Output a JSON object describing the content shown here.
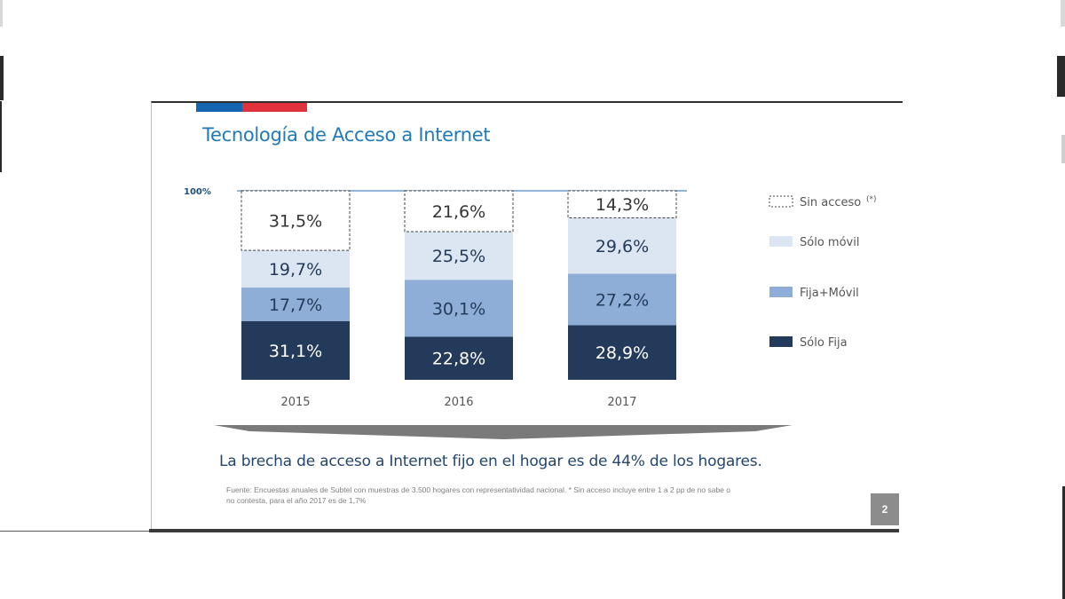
{
  "slide": {
    "title": "Tecnología de Acceso a Internet",
    "conclusion": "La brecha de acceso a Internet fijo en el hogar es de 44% de los hogares.",
    "footnote_line1": "Fuente: Encuestas anuales de Subtel con muestras de 3.500 hogares con representatividad nacional. * Sin acceso incluye entre 1 a 2 pp de no sabe o",
    "footnote_line2": "no contesta, para el año 2017 es de 1,7%",
    "page_number": "2"
  },
  "colors": {
    "title": "#1f7ab8",
    "flag_blue": "#1565b0",
    "flag_red": "#e0313c",
    "solo_fija": "#243a5a",
    "fija_movil": "#8faed7",
    "solo_movil": "#dce6f2",
    "sin_acceso_border": "#444444",
    "value_text_dark": "#243a5a",
    "value_text_light": "#ffffff"
  },
  "chart_data": {
    "type": "bar",
    "stacked": true,
    "categories": [
      "2015",
      "2016",
      "2017"
    ],
    "ylim": [
      0,
      100
    ],
    "top_label": "100%",
    "series": [
      {
        "name": "Sólo Fija",
        "values": [
          31.1,
          22.8,
          28.9
        ],
        "labels": [
          "31,1%",
          "22,8%",
          "28,9%"
        ],
        "color": "#243a5a",
        "label_color": "#ffffff"
      },
      {
        "name": "Fija+Móvil",
        "values": [
          17.7,
          30.1,
          27.2
        ],
        "labels": [
          "17,7%",
          "30,1%",
          "27,2%"
        ],
        "color": "#8faed7",
        "label_color": "#243a5a"
      },
      {
        "name": "Sólo móvil",
        "values": [
          19.7,
          25.5,
          29.6
        ],
        "labels": [
          "19,7%",
          "25,5%",
          "29,6%"
        ],
        "color": "#dce6f2",
        "label_color": "#243a5a"
      },
      {
        "name": "Sin acceso",
        "name_suffix": "(*)",
        "values": [
          31.5,
          21.6,
          14.3
        ],
        "labels": [
          "31,5%",
          "21,6%",
          "14,3%"
        ],
        "color": "#ffffff",
        "label_color": "#333333",
        "dashed": true
      }
    ],
    "legend_position": "right",
    "legend_order": [
      3,
      2,
      1,
      0
    ]
  }
}
